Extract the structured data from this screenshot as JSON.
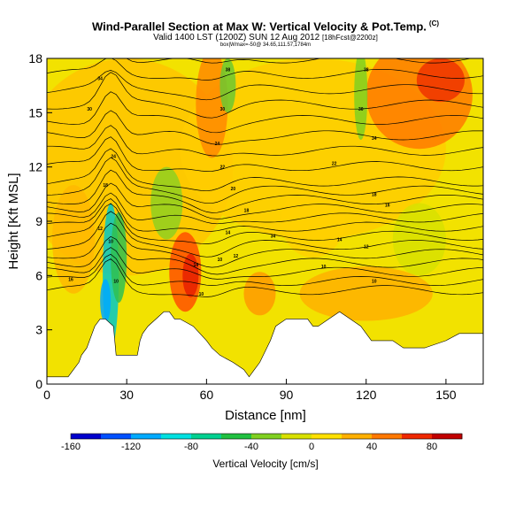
{
  "title": "Wind-Parallel Section at Max W: Vertical Velocity & Pot.Temp.",
  "title_mark": "(C)",
  "subtitle": "Valid 1400 LST (1200Z) SUN 12 Aug 2012",
  "subtitle_run": "[18hFcst@2200z]",
  "meta_line": "box|Wmax=-50@ 34.65,111.57,1784m",
  "colors": {
    "ramp": [
      "#0000cc",
      "#0050ff",
      "#00aaff",
      "#00e0e0",
      "#00d090",
      "#20c040",
      "#80d020",
      "#d8e000",
      "#ffe000",
      "#ffb000",
      "#ff7800",
      "#ee2800",
      "#c00000"
    ]
  },
  "chart_data": {
    "type": "heatmap",
    "description_variable": "Vertical Velocity",
    "xlabel": "Distance [nm]",
    "ylabel": "Height [Kft MSL]",
    "xlim": [
      0,
      164
    ],
    "ylim": [
      0,
      18
    ],
    "x_ticks": [
      0,
      30,
      60,
      90,
      120,
      150
    ],
    "y_ticks": [
      0,
      3,
      6,
      9,
      12,
      15,
      18
    ],
    "colorbar": {
      "label": "Vertical Velocity [cm/s]",
      "min": -160,
      "max": 100,
      "ticks": [
        -160,
        -120,
        -80,
        -40,
        0,
        40,
        80
      ]
    },
    "terrain": [
      [
        0,
        0.4
      ],
      [
        8,
        0.4
      ],
      [
        10,
        0.8
      ],
      [
        12,
        1.2
      ],
      [
        13,
        1.6
      ],
      [
        15,
        2.0
      ],
      [
        16,
        2.4
      ],
      [
        18,
        3.2
      ],
      [
        20,
        3.6
      ],
      [
        22,
        3.6
      ],
      [
        25,
        3.2
      ],
      [
        26,
        1.6
      ],
      [
        34,
        1.6
      ],
      [
        35,
        2.4
      ],
      [
        36,
        2.8
      ],
      [
        38,
        3.2
      ],
      [
        41,
        3.6
      ],
      [
        44,
        4.0
      ],
      [
        46,
        4.0
      ],
      [
        48,
        3.6
      ],
      [
        50,
        3.6
      ],
      [
        55,
        3.2
      ],
      [
        60,
        2.4
      ],
      [
        62,
        2.0
      ],
      [
        65,
        1.6
      ],
      [
        70,
        1.2
      ],
      [
        74,
        0.8
      ],
      [
        76,
        0.4
      ],
      [
        78,
        0.8
      ],
      [
        80,
        1.2
      ],
      [
        84,
        2.4
      ],
      [
        86,
        3.2
      ],
      [
        90,
        3.6
      ],
      [
        94,
        3.6
      ],
      [
        98,
        3.6
      ],
      [
        100,
        3.2
      ],
      [
        102,
        3.2
      ],
      [
        106,
        3.6
      ],
      [
        110,
        4.0
      ],
      [
        114,
        3.6
      ],
      [
        118,
        3.2
      ],
      [
        120,
        2.8
      ],
      [
        122,
        2.4
      ],
      [
        124,
        2.4
      ],
      [
        130,
        2.4
      ],
      [
        134,
        2.0
      ],
      [
        138,
        2.0
      ],
      [
        142,
        2.0
      ],
      [
        150,
        2.4
      ],
      [
        155,
        2.8
      ],
      [
        160,
        2.8
      ],
      [
        164,
        2.8
      ]
    ],
    "contour_labels": [
      {
        "text": "38",
        "x": 68,
        "y": 17.4
      },
      {
        "text": "38",
        "x": 120,
        "y": 17.4
      },
      {
        "text": "34",
        "x": 20,
        "y": 16.9
      },
      {
        "text": "30",
        "x": 16,
        "y": 15.2
      },
      {
        "text": "30",
        "x": 66,
        "y": 15.2
      },
      {
        "text": "30",
        "x": 118,
        "y": 15.2
      },
      {
        "text": "34",
        "x": 123,
        "y": 13.6
      },
      {
        "text": "24",
        "x": 64,
        "y": 13.3
      },
      {
        "text": "24",
        "x": 25,
        "y": 12.6
      },
      {
        "text": "22",
        "x": 66,
        "y": 12.0
      },
      {
        "text": "22",
        "x": 108,
        "y": 12.2
      },
      {
        "text": "18",
        "x": 22,
        "y": 11.0
      },
      {
        "text": "20",
        "x": 70,
        "y": 10.8
      },
      {
        "text": "18",
        "x": 123,
        "y": 10.5
      },
      {
        "text": "16",
        "x": 128,
        "y": 9.9
      },
      {
        "text": "18",
        "x": 75,
        "y": 9.6
      },
      {
        "text": "12",
        "x": 20,
        "y": 8.6
      },
      {
        "text": "14",
        "x": 68,
        "y": 8.4
      },
      {
        "text": "34",
        "x": 85,
        "y": 8.2
      },
      {
        "text": "14",
        "x": 110,
        "y": 8.0
      },
      {
        "text": "10",
        "x": 24,
        "y": 7.9
      },
      {
        "text": "12",
        "x": 120,
        "y": 7.6
      },
      {
        "text": "12",
        "x": 71,
        "y": 7.1
      },
      {
        "text": "10",
        "x": 65,
        "y": 6.9
      },
      {
        "text": "14",
        "x": 56,
        "y": 6.6
      },
      {
        "text": "10",
        "x": 104,
        "y": 6.5
      },
      {
        "text": "16",
        "x": 9,
        "y": 5.8
      },
      {
        "text": "10",
        "x": 26,
        "y": 5.7
      },
      {
        "text": "10",
        "x": 123,
        "y": 5.7
      },
      {
        "text": "10",
        "x": 58,
        "y": 5.0
      }
    ]
  }
}
